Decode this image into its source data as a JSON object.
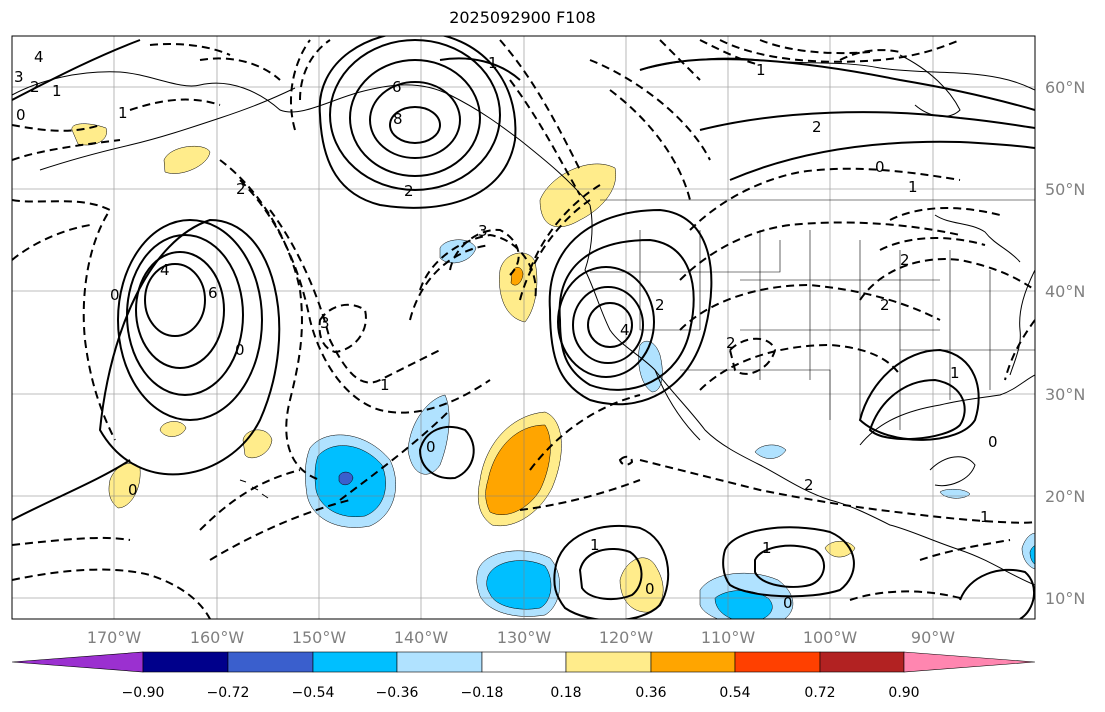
{
  "title": "2025092900 F108",
  "map": {
    "longitude_labels": [
      "170°W",
      "160°W",
      "150°W",
      "140°W",
      "130°W",
      "120°W",
      "110°W",
      "100°W",
      "90°W"
    ],
    "latitude_labels": [
      "60°N",
      "50°N",
      "40°N",
      "30°N",
      "20°N",
      "10°N"
    ],
    "contour_labels": [
      "3",
      "4",
      "2",
      "1",
      "0",
      "6",
      "8",
      "2",
      "1",
      "0",
      "6",
      "4",
      "2",
      "1",
      "3",
      "2",
      "0",
      "2",
      "2",
      "3",
      "1",
      "4",
      "2",
      "1",
      "0",
      "0",
      "1",
      "0",
      "1",
      "0",
      "2",
      "2",
      "1",
      "0",
      "1",
      "0",
      "1"
    ]
  },
  "colorbar": {
    "tick_labels": [
      "−0.90",
      "−0.72",
      "−0.54",
      "−0.36",
      "−0.18",
      "0.18",
      "0.36",
      "0.54",
      "0.72",
      "0.90"
    ],
    "colors": [
      "#9b30d0",
      "#00008b",
      "#3a5fcd",
      "#00bfff",
      "#b0e2ff",
      "#ffffff",
      "#ffec8b",
      "#ffa500",
      "#ff4000",
      "#b22222",
      "#ff86b0"
    ]
  }
}
